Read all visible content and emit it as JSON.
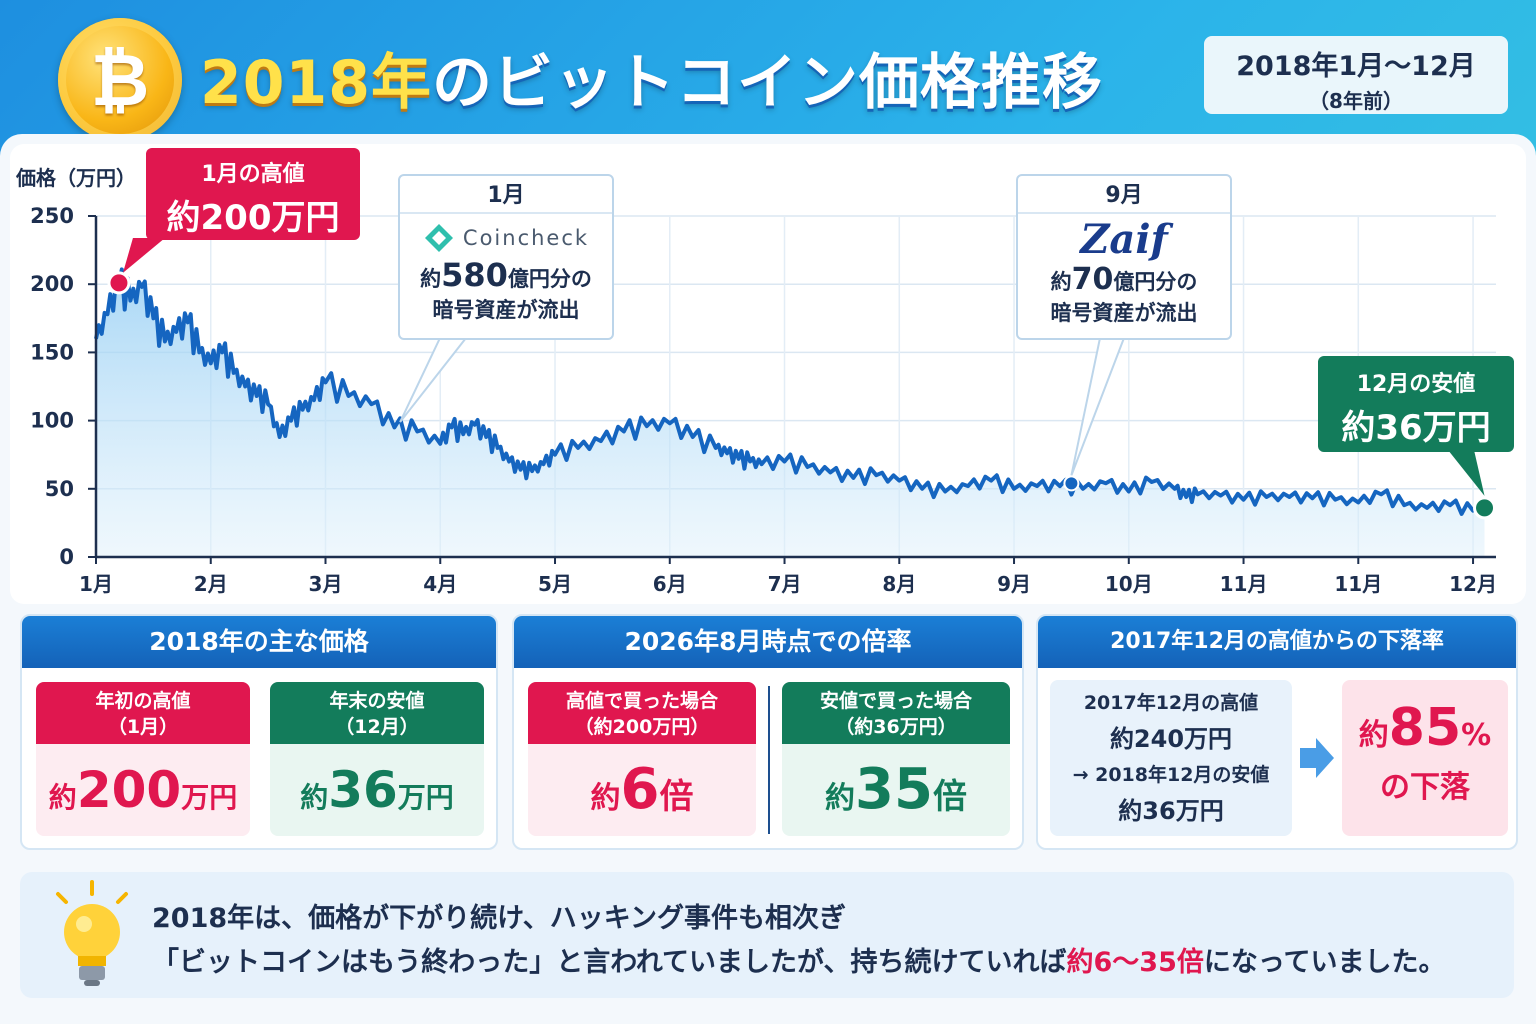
{
  "header": {
    "coin_symbol": "₿",
    "title_year": "2018年",
    "title_rest": "のビットコイン価格推移",
    "period_line1": "2018年1月〜12月",
    "period_line2": "（8年前）"
  },
  "colors": {
    "accent_red": "#e0174f",
    "accent_green": "#137c5b",
    "line_blue": "#1565c0",
    "header_blue": "#1b7fd6"
  },
  "chart_data": {
    "type": "area",
    "ylabel": "価格（万円）",
    "ylim": [
      0,
      250
    ],
    "yticks": [
      0,
      50,
      100,
      150,
      200,
      250
    ],
    "xticks": [
      "1月",
      "2月",
      "3月",
      "4月",
      "5月",
      "6月",
      "7月",
      "8月",
      "9月",
      "10月",
      "11月",
      "11月",
      "12月"
    ],
    "grid": true,
    "series": [
      {
        "x": [
          0,
          0.1,
          0.2,
          0.3,
          0.4,
          0.5,
          0.6,
          0.7,
          0.8,
          0.9,
          1,
          1.1,
          1.2,
          1.3,
          1.4,
          1.5,
          1.6,
          1.7,
          1.8,
          1.9,
          2,
          2.2,
          2.4,
          2.6,
          2.8,
          3,
          3.1,
          3.2,
          3.3,
          3.4,
          3.5,
          3.6,
          3.7,
          3.8,
          3.9,
          4,
          4.2,
          4.4,
          4.6,
          4.8,
          5,
          5.2,
          5.4,
          5.5,
          5.6,
          5.7,
          5.8,
          6,
          6.2,
          6.4,
          6.6,
          6.8,
          7,
          7.2,
          7.4,
          7.6,
          7.8,
          8,
          8.2,
          8.4,
          8.6,
          8.8,
          9,
          9.2,
          9.4,
          9.5,
          9.6,
          9.8,
          10,
          10.2,
          10.4,
          10.6,
          10.8,
          11,
          11.2,
          11.4,
          11.6,
          11.8,
          12,
          12.1
        ],
        "values": [
          160,
          178,
          201,
          188,
          198,
          175,
          158,
          165,
          172,
          150,
          142,
          150,
          135,
          125,
          118,
          112,
          88,
          100,
          108,
          115,
          128,
          118,
          112,
          95,
          92,
          83,
          95,
          90,
          97,
          88,
          80,
          70,
          64,
          63,
          68,
          75,
          80,
          85,
          92,
          96,
          98,
          88,
          80,
          76,
          72,
          70,
          68,
          70,
          66,
          62,
          58,
          60,
          56,
          50,
          48,
          52,
          56,
          50,
          52,
          52,
          50,
          54,
          48,
          55,
          50,
          44,
          46,
          45,
          42,
          44,
          44,
          43,
          42,
          40,
          46,
          38,
          36,
          38,
          34,
          36
        ]
      }
    ],
    "annotations": [
      {
        "label": "1月の高値",
        "value_text": "約200万円",
        "month": 0.2,
        "price": 201
      },
      {
        "label": "1月",
        "brand": "Coincheck",
        "line1_prefix": "約",
        "line1_num": "580",
        "line1_suffix": "億円分の",
        "line2": "暗号資産が流出",
        "month": 2.65,
        "price": 96
      },
      {
        "label": "9月",
        "brand": "Zaif",
        "line1_prefix": "約",
        "line1_num": "70",
        "line1_suffix": "億円分の",
        "line2": "暗号資産が流出",
        "month": 8.5,
        "price": 54
      },
      {
        "label": "12月の安値",
        "value_text": "約36万円",
        "month": 12.1,
        "price": 36
      }
    ]
  },
  "sec1": {
    "title": "2018年の主な価格",
    "cards": [
      {
        "h1": "年初の高値",
        "h2": "（1月）",
        "prefix": "約",
        "num": "200",
        "unit": "万円"
      },
      {
        "h1": "年末の安値",
        "h2": "（12月）",
        "prefix": "約",
        "num": "36",
        "unit": "万円"
      }
    ]
  },
  "sec2": {
    "title": "2026年8月時点での倍率",
    "cards": [
      {
        "h1": "高値で買った場合",
        "h2": "（約200万円）",
        "prefix": "約",
        "num": "6",
        "unit": "倍"
      },
      {
        "h1": "安値で買った場合",
        "h2": "（約36万円）",
        "prefix": "約",
        "num": "35",
        "unit": "倍"
      }
    ]
  },
  "sec3": {
    "title": "2017年12月の高値からの下落率",
    "l1": "2017年12月の高値",
    "l2": "約240万円",
    "l3": "→ 2018年12月の安値",
    "l4": "約36万円",
    "r_prefix": "約",
    "r_num": "85",
    "r_pct": "%",
    "r_text": "の下落"
  },
  "tip": {
    "line1": "2018年は、価格が下がり続け、ハッキング事件も相次ぎ",
    "line2_a": "「ビットコインはもう終わった」と言われていましたが、持ち続けていれば",
    "line2_hl": "約6〜35倍",
    "line2_b": "になっていました。"
  }
}
